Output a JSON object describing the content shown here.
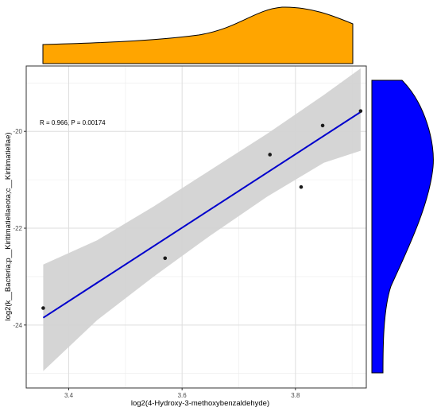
{
  "chart_data": {
    "type": "scatter",
    "xlabel": "log2(4-Hydroxy-3-methoxybenzaldehyde)",
    "ylabel": "log2(k__Bacteria;p__Kiritimatiellaeota;c__Kiritimatiellae)",
    "annotation": "R = 0.966, P = 0.00174",
    "xlim": [
      3.325,
      3.925
    ],
    "ylim": [
      -25.3,
      -18.65
    ],
    "x_ticks": [
      3.4,
      3.6,
      3.8
    ],
    "x_tick_labels": [
      "3.4",
      "3.6",
      "3.8"
    ],
    "y_ticks": [
      -24,
      -22,
      -20
    ],
    "y_tick_labels": [
      "-24",
      "-22",
      "-20"
    ],
    "points": [
      {
        "x": 3.355,
        "y": -23.65
      },
      {
        "x": 3.57,
        "y": -22.62
      },
      {
        "x": 3.755,
        "y": -20.48
      },
      {
        "x": 3.81,
        "y": -21.15
      },
      {
        "x": 3.848,
        "y": -19.88
      },
      {
        "x": 3.915,
        "y": -19.58
      }
    ],
    "fit_line": {
      "x": [
        3.355,
        3.915
      ],
      "y": [
        -23.85,
        -19.6
      ],
      "color": "#0000cc"
    },
    "confidence_band": {
      "x": [
        3.355,
        3.45,
        3.55,
        3.65,
        3.75,
        3.85,
        3.915
      ],
      "upper": [
        -22.75,
        -22.25,
        -21.55,
        -20.8,
        -20.05,
        -19.25,
        -18.7
      ],
      "lower": [
        -24.95,
        -23.9,
        -23.0,
        -22.15,
        -21.35,
        -20.65,
        -20.4
      ],
      "color": "#d3d3d3"
    },
    "grid": true,
    "marginal_x": {
      "type": "density",
      "fill": "#ffa500"
    },
    "marginal_y": {
      "type": "density",
      "fill": "#0000ff"
    },
    "point_color": "#1a1a1a"
  }
}
